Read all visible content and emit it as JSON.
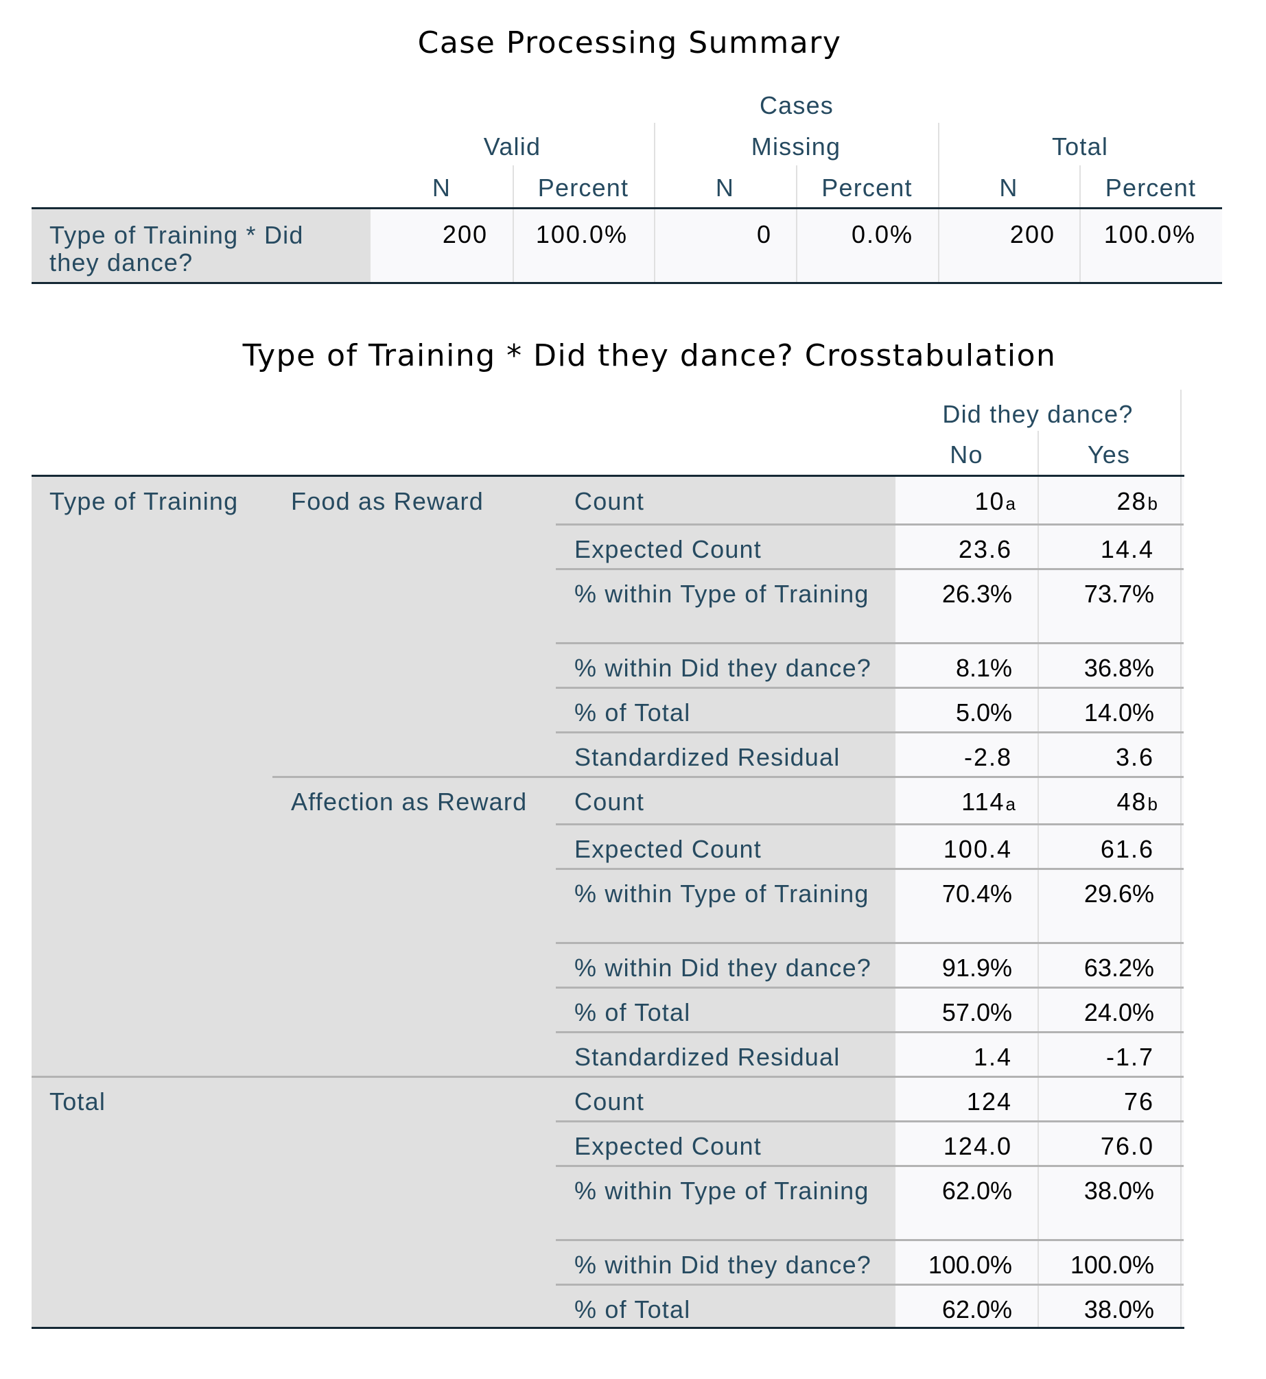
{
  "case_processing_summary": {
    "title": "Case Processing Summary",
    "cases_header": "Cases",
    "groups": [
      "Valid",
      "Missing",
      "Total"
    ],
    "sub_headers": [
      "N",
      "Percent",
      "N",
      "Percent",
      "N",
      "Percent"
    ],
    "row_label": "Type of Training * Did they dance?",
    "row_label_line1": "Type of Training * Did",
    "row_label_line2": "they dance?",
    "values": [
      "200",
      "100.0%",
      "0",
      "0.0%",
      "200",
      "100.0%"
    ]
  },
  "crosstab": {
    "title": "Type of Training * Did they dance? Crosstabulation",
    "column_variable": "Did they dance?",
    "columns": [
      "No",
      "Yes"
    ],
    "row_variable": "Type of Training",
    "groups": [
      {
        "label": "Food as Reward",
        "rows": [
          {
            "stat": "Count",
            "no": "10",
            "no_sup": "a",
            "yes": "28",
            "yes_sup": "b"
          },
          {
            "stat": "Expected Count",
            "no": "23.6",
            "yes": "14.4"
          },
          {
            "stat": "% within Type of Training",
            "no": "26.3%",
            "yes": "73.7%"
          },
          {
            "stat": "% within Did they dance?",
            "no": "8.1%",
            "yes": "36.8%"
          },
          {
            "stat": "% of Total",
            "no": "5.0%",
            "yes": "14.0%"
          },
          {
            "stat": "Standardized Residual",
            "no": "-2.8",
            "yes": "3.6"
          }
        ]
      },
      {
        "label": "Affection as Reward",
        "rows": [
          {
            "stat": "Count",
            "no": "114",
            "no_sup": "a",
            "yes": "48",
            "yes_sup": "b"
          },
          {
            "stat": "Expected Count",
            "no": "100.4",
            "yes": "61.6"
          },
          {
            "stat": "% within Type of Training",
            "no": "70.4%",
            "yes": "29.6%"
          },
          {
            "stat": "% within Did they dance?",
            "no": "91.9%",
            "yes": "63.2%"
          },
          {
            "stat": "% of Total",
            "no": "57.0%",
            "yes": "24.0%"
          },
          {
            "stat": "Standardized Residual",
            "no": "1.4",
            "yes": "-1.7"
          }
        ]
      }
    ],
    "total": {
      "label": "Total",
      "rows": [
        {
          "stat": "Count",
          "no": "124",
          "yes": "76"
        },
        {
          "stat": "Expected Count",
          "no": "124.0",
          "yes": "76.0"
        },
        {
          "stat": "% within Type of Training",
          "no": "62.0%",
          "yes": "38.0%"
        },
        {
          "stat": "% within Did they dance?",
          "no": "100.0%",
          "yes": "100.0%"
        },
        {
          "stat": "% of Total",
          "no": "62.0%",
          "yes": "38.0%"
        }
      ]
    }
  },
  "colors": {
    "label_text": "#264a60",
    "label_background": "#e0e0e0",
    "data_background": "#f9f9fb",
    "heavy_rule": "#152935",
    "grid": "#b3b3b3"
  }
}
